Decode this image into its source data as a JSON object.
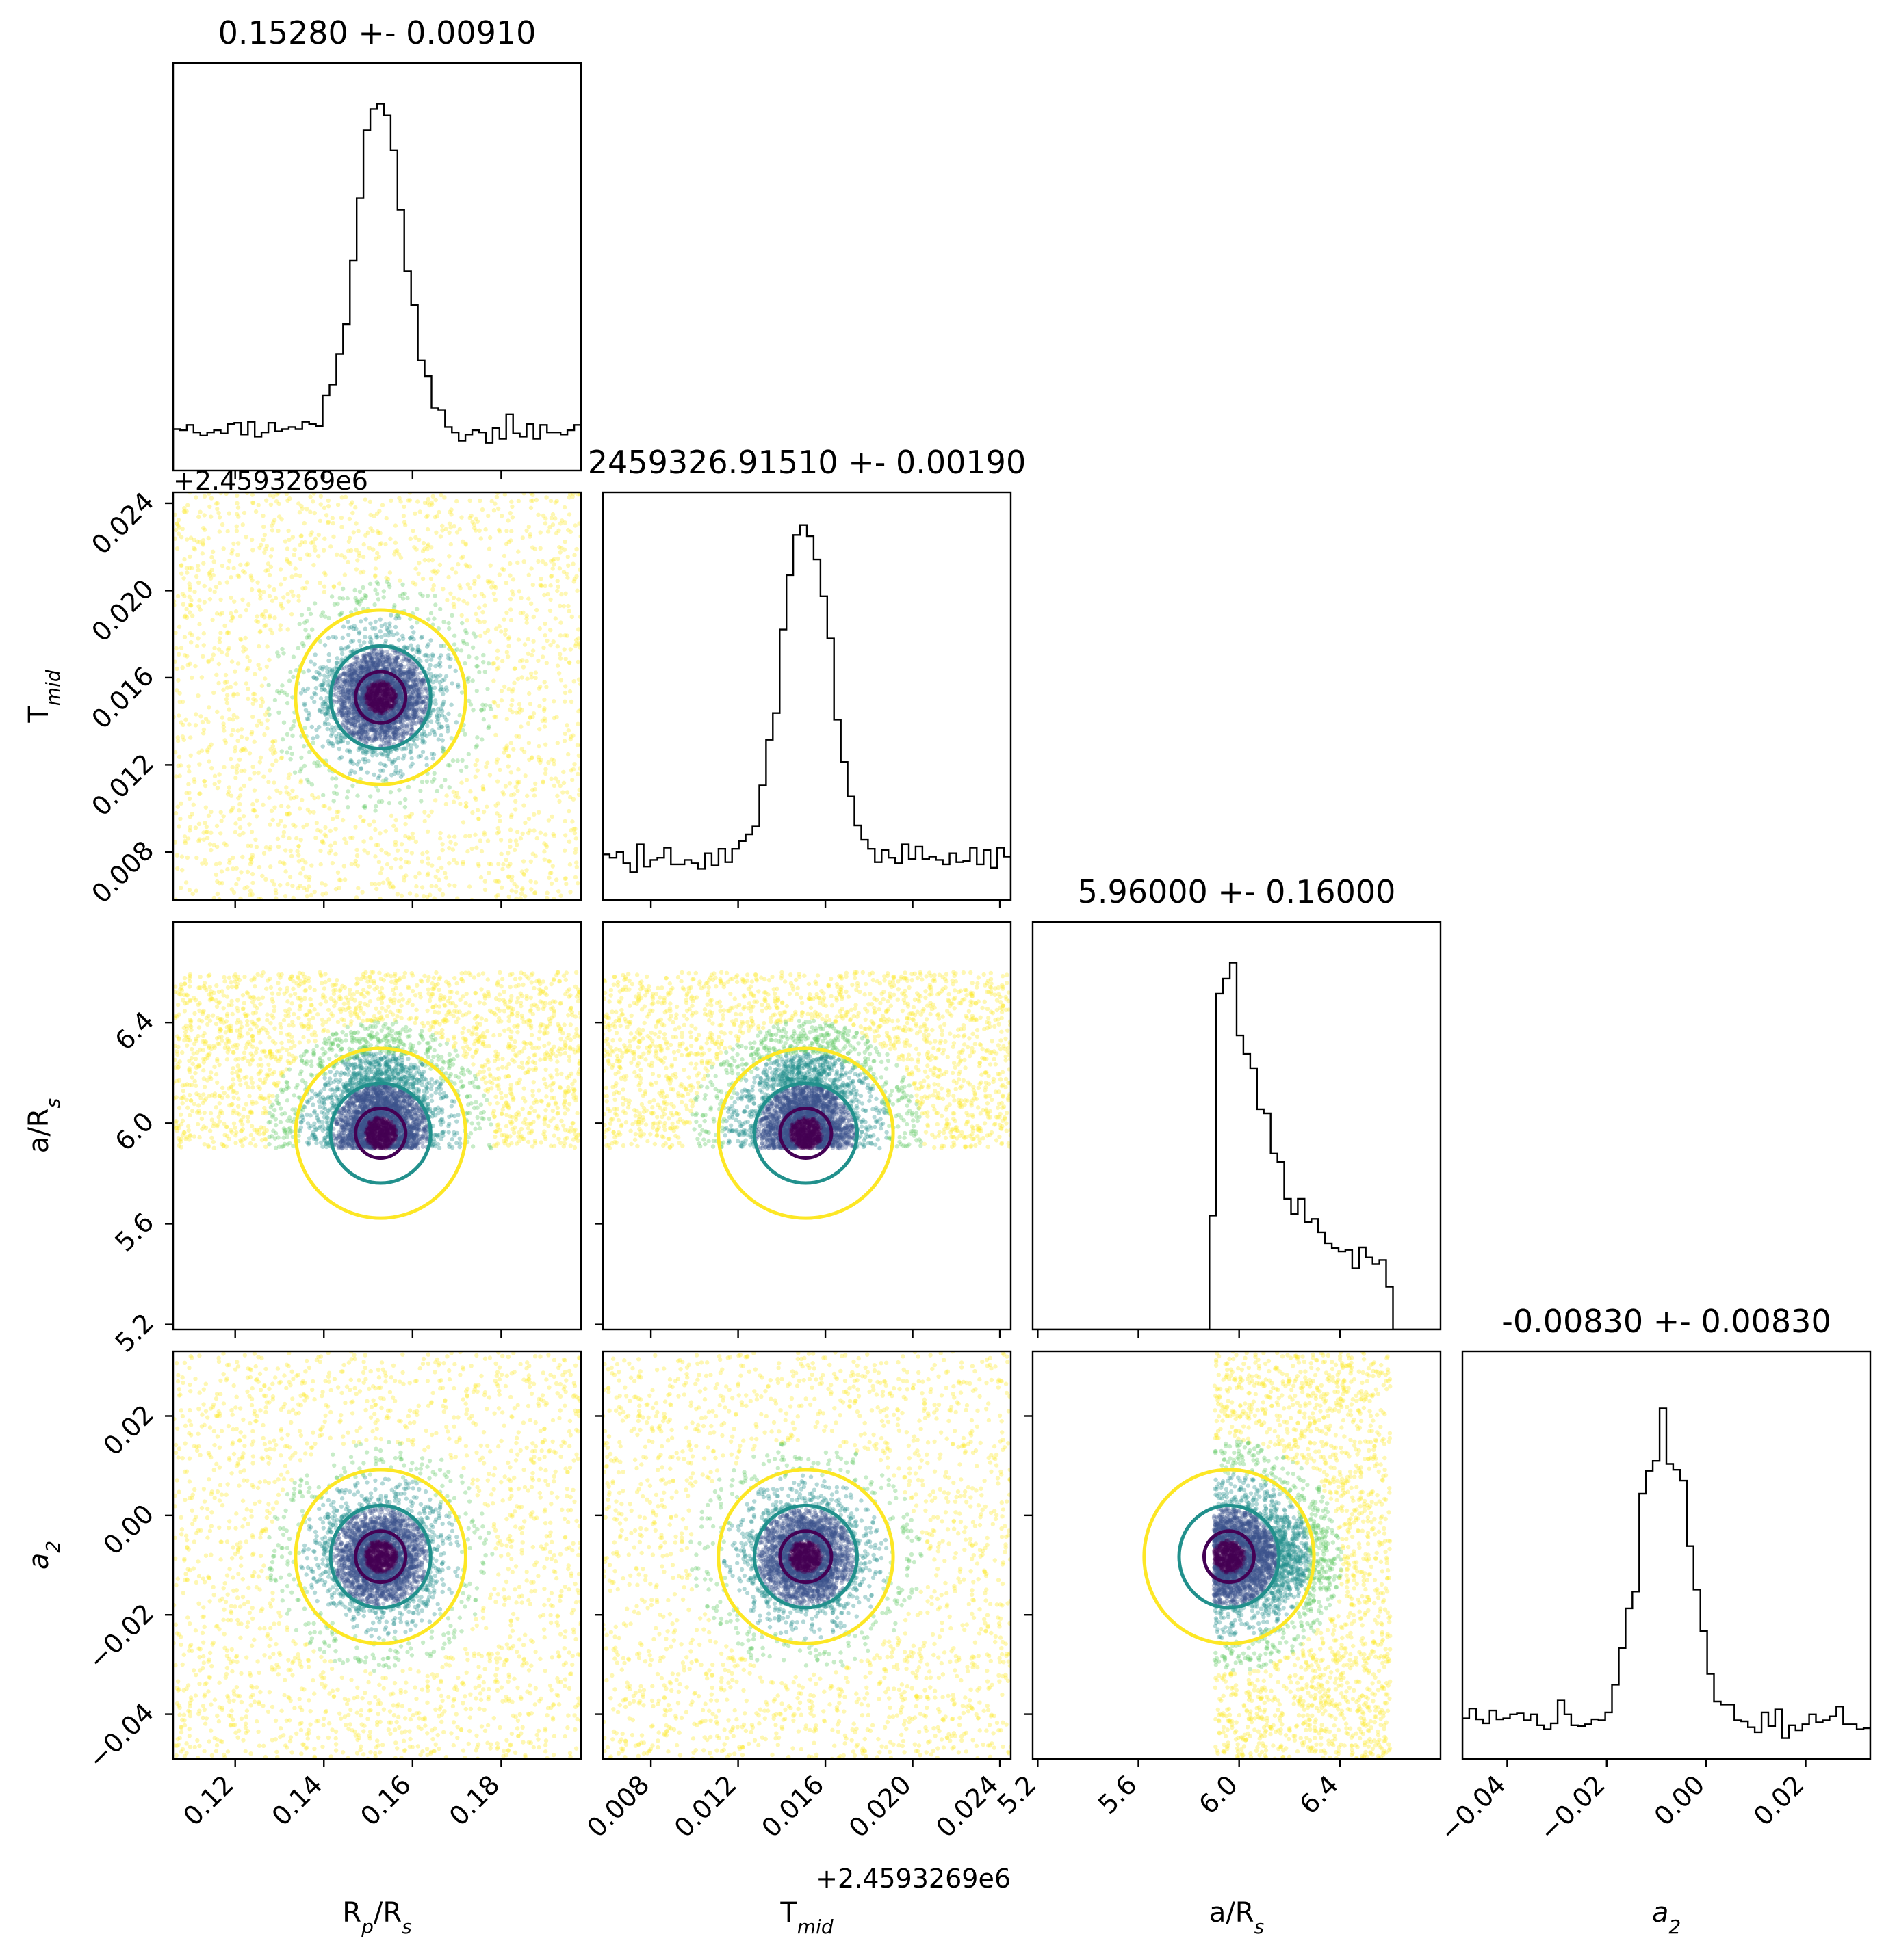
{
  "chart_data": {
    "type": "scatter",
    "layout": "corner",
    "parameters": [
      {
        "key": "rp",
        "label_main": "R",
        "label_sub": "p",
        "label_mid": "/R",
        "label_sub2": "s",
        "range": [
          0.106,
          0.198
        ],
        "ticks": [
          0.12,
          0.14,
          0.16,
          0.18
        ],
        "tick_labels": [
          "0.12",
          "0.14",
          "0.16",
          "0.18"
        ],
        "title": "0.15280 +- 0.00910",
        "median": 0.1528,
        "sigma": 0.0091,
        "hist_peak_frac": 0.9
      },
      {
        "key": "tmid",
        "label_main": "T",
        "label_sub": "mid",
        "label_mid": "",
        "label_sub2": "",
        "offset_label": "+2.4593269e6",
        "range": [
          0.0058,
          0.0245
        ],
        "ticks": [
          0.008,
          0.012,
          0.016,
          0.02,
          0.024
        ],
        "tick_labels": [
          "0.008",
          "0.012",
          "0.016",
          "0.020",
          "0.024"
        ],
        "title": "2459326.91510 +- 0.00190",
        "median": 0.0151,
        "sigma": 0.0019,
        "hist_peak_frac": 0.92
      },
      {
        "key": "ars",
        "label_main": "a/R",
        "label_sub": "s",
        "label_mid": "",
        "label_sub2": "",
        "range": [
          5.18,
          6.8
        ],
        "ticks": [
          5.2,
          5.6,
          6.0,
          6.4
        ],
        "tick_labels": [
          "5.2",
          "5.6",
          "6.0",
          "6.4"
        ],
        "title": "5.96000 +- 0.16000",
        "median": 5.96,
        "sigma": 0.16,
        "hist_peak_frac": 0.9
      },
      {
        "key": "a2",
        "label_main": "a",
        "label_sub": "2",
        "label_mid": "",
        "label_sub2": "",
        "italic": true,
        "range": [
          -0.049,
          0.033
        ],
        "ticks": [
          -0.04,
          -0.02,
          0.0,
          0.02
        ],
        "tick_labels": [
          "−0.04",
          "−0.02",
          "0.00",
          "0.02"
        ],
        "title": "-0.00830 +- 0.00830",
        "median": -0.0083,
        "sigma": 0.0083,
        "hist_peak_frac": 0.86
      }
    ],
    "ars_prior": [
      5.9,
      6.6
    ],
    "contour_colors": [
      "#440154",
      "#21908c",
      "#fde725"
    ],
    "scatter_cmap": [
      "#440154",
      "#3b528b",
      "#21908c",
      "#5ec962",
      "#fde725"
    ],
    "grid": false
  }
}
